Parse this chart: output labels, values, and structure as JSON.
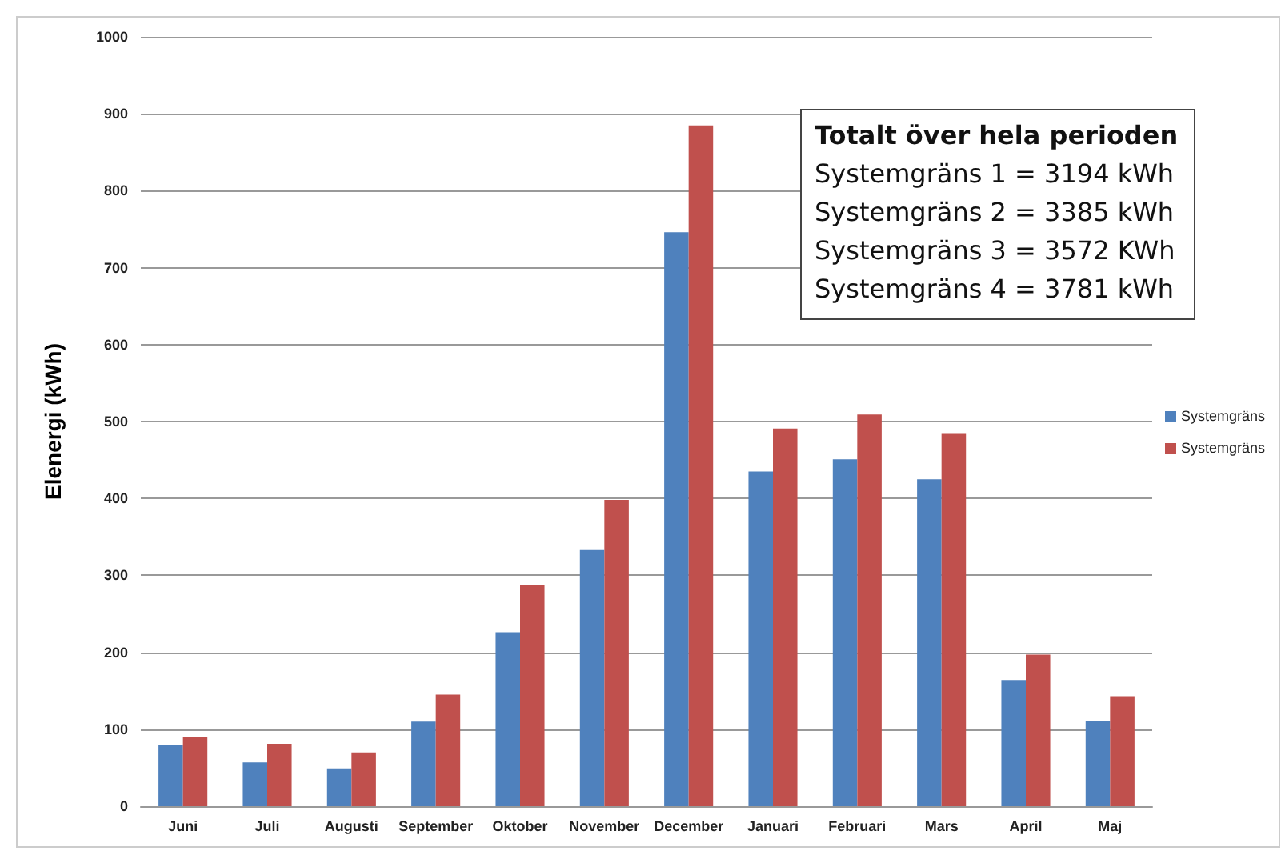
{
  "chart_data": {
    "type": "bar",
    "ylabel": "Elenergi (kWh)",
    "categories": [
      "Juni",
      "Juli",
      "Augusti",
      "September",
      "Oktober",
      "November",
      "December",
      "Januari",
      "Februari",
      "Mars",
      "April",
      "Maj"
    ],
    "series": [
      {
        "name": "Systemgräns",
        "color": "#4f81bd",
        "values": [
          80,
          57,
          49,
          110,
          226,
          333,
          746,
          435,
          451,
          425,
          164,
          111
        ]
      },
      {
        "name": "Systemgräns",
        "color": "#c0504d",
        "values": [
          90,
          81,
          70,
          145,
          287,
          398,
          885,
          491,
          509,
          484,
          197,
          143
        ]
      }
    ],
    "ylim": [
      0,
      1000
    ],
    "yticks": [
      0,
      100,
      200,
      300,
      400,
      500,
      600,
      700,
      800,
      900,
      1000
    ],
    "grid": "y",
    "legend": "right",
    "annotations": [
      "Totalt över hela perioden",
      "Systemgräns 1 = 3194 kWh",
      "Systemgräns 2 = 3385 kWh",
      "Systemgräns 3 = 3572 KWh",
      "Systemgräns 4 = 3781 kWh"
    ]
  }
}
